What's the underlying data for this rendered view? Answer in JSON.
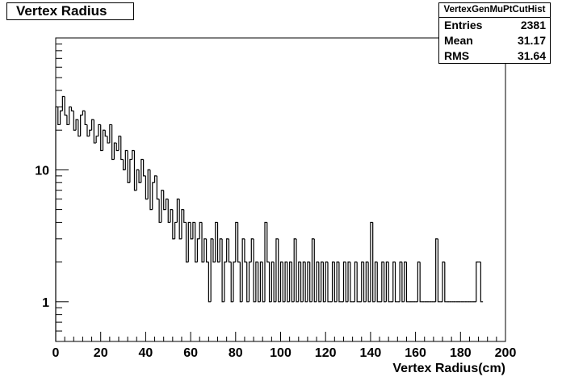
{
  "title": "Vertex Radius",
  "stats": {
    "name": "VertexGenMuPtCutHist",
    "rows": [
      {
        "label": "Entries",
        "value": "2381"
      },
      {
        "label": "Mean",
        "value": "31.17"
      },
      {
        "label": "RMS",
        "value": "31.64"
      }
    ]
  },
  "chart_data": {
    "type": "histogram",
    "title": "Vertex Radius",
    "xlabel": "Vertex Radius(cm)",
    "ylabel": "",
    "xlim": [
      0,
      200
    ],
    "ylim": [
      0.5,
      100
    ],
    "y_scale": "log",
    "grid": false,
    "x_tick_labels": [
      "0",
      "20",
      "40",
      "60",
      "80",
      "100",
      "120",
      "140",
      "160",
      "180",
      "200"
    ],
    "y_tick_labels": [
      {
        "value": 1,
        "label": "1"
      },
      {
        "value": 10,
        "label": "10"
      }
    ],
    "bin_width": 1,
    "bins": [
      {
        "x": 0,
        "count": 30
      },
      {
        "x": 1,
        "count": 22
      },
      {
        "x": 2,
        "count": 28
      },
      {
        "x": 3,
        "count": 36
      },
      {
        "x": 4,
        "count": 26
      },
      {
        "x": 5,
        "count": 22
      },
      {
        "x": 6,
        "count": 30
      },
      {
        "x": 7,
        "count": 28
      },
      {
        "x": 8,
        "count": 20
      },
      {
        "x": 9,
        "count": 24
      },
      {
        "x": 10,
        "count": 18
      },
      {
        "x": 11,
        "count": 26
      },
      {
        "x": 12,
        "count": 28
      },
      {
        "x": 13,
        "count": 22
      },
      {
        "x": 14,
        "count": 18
      },
      {
        "x": 15,
        "count": 20
      },
      {
        "x": 16,
        "count": 24
      },
      {
        "x": 17,
        "count": 16
      },
      {
        "x": 18,
        "count": 18
      },
      {
        "x": 19,
        "count": 22
      },
      {
        "x": 20,
        "count": 14
      },
      {
        "x": 21,
        "count": 20
      },
      {
        "x": 22,
        "count": 18
      },
      {
        "x": 23,
        "count": 16
      },
      {
        "x": 24,
        "count": 22
      },
      {
        "x": 25,
        "count": 12
      },
      {
        "x": 26,
        "count": 16
      },
      {
        "x": 27,
        "count": 14
      },
      {
        "x": 28,
        "count": 18
      },
      {
        "x": 29,
        "count": 12
      },
      {
        "x": 30,
        "count": 10
      },
      {
        "x": 31,
        "count": 14
      },
      {
        "x": 32,
        "count": 8
      },
      {
        "x": 33,
        "count": 12
      },
      {
        "x": 34,
        "count": 14
      },
      {
        "x": 35,
        "count": 7
      },
      {
        "x": 36,
        "count": 10
      },
      {
        "x": 37,
        "count": 8
      },
      {
        "x": 38,
        "count": 12
      },
      {
        "x": 39,
        "count": 9
      },
      {
        "x": 40,
        "count": 6
      },
      {
        "x": 41,
        "count": 10
      },
      {
        "x": 42,
        "count": 5
      },
      {
        "x": 43,
        "count": 8
      },
      {
        "x": 44,
        "count": 9
      },
      {
        "x": 45,
        "count": 6
      },
      {
        "x": 46,
        "count": 4
      },
      {
        "x": 47,
        "count": 7
      },
      {
        "x": 48,
        "count": 5
      },
      {
        "x": 49,
        "count": 6
      },
      {
        "x": 50,
        "count": 4
      },
      {
        "x": 51,
        "count": 5
      },
      {
        "x": 52,
        "count": 3
      },
      {
        "x": 53,
        "count": 4
      },
      {
        "x": 54,
        "count": 6
      },
      {
        "x": 55,
        "count": 3
      },
      {
        "x": 56,
        "count": 5
      },
      {
        "x": 57,
        "count": 4
      },
      {
        "x": 58,
        "count": 2
      },
      {
        "x": 59,
        "count": 4
      },
      {
        "x": 60,
        "count": 3
      },
      {
        "x": 61,
        "count": 4
      },
      {
        "x": 62,
        "count": 2
      },
      {
        "x": 63,
        "count": 3
      },
      {
        "x": 64,
        "count": 4
      },
      {
        "x": 65,
        "count": 2
      },
      {
        "x": 66,
        "count": 3
      },
      {
        "x": 67,
        "count": 2
      },
      {
        "x": 68,
        "count": 1
      },
      {
        "x": 69,
        "count": 3
      },
      {
        "x": 70,
        "count": 2
      },
      {
        "x": 71,
        "count": 4
      },
      {
        "x": 72,
        "count": 2
      },
      {
        "x": 73,
        "count": 3
      },
      {
        "x": 74,
        "count": 1
      },
      {
        "x": 75,
        "count": 2
      },
      {
        "x": 76,
        "count": 3
      },
      {
        "x": 77,
        "count": 2
      },
      {
        "x": 78,
        "count": 1
      },
      {
        "x": 79,
        "count": 2
      },
      {
        "x": 80,
        "count": 4
      },
      {
        "x": 81,
        "count": 2
      },
      {
        "x": 82,
        "count": 1
      },
      {
        "x": 83,
        "count": 3
      },
      {
        "x": 84,
        "count": 2
      },
      {
        "x": 85,
        "count": 1
      },
      {
        "x": 86,
        "count": 2
      },
      {
        "x": 87,
        "count": 3
      },
      {
        "x": 88,
        "count": 1
      },
      {
        "x": 89,
        "count": 2
      },
      {
        "x": 90,
        "count": 1
      },
      {
        "x": 91,
        "count": 2
      },
      {
        "x": 92,
        "count": 1
      },
      {
        "x": 93,
        "count": 4
      },
      {
        "x": 94,
        "count": 2
      },
      {
        "x": 95,
        "count": 1
      },
      {
        "x": 96,
        "count": 2
      },
      {
        "x": 97,
        "count": 1
      },
      {
        "x": 98,
        "count": 3
      },
      {
        "x": 99,
        "count": 1
      },
      {
        "x": 100,
        "count": 2
      },
      {
        "x": 101,
        "count": 1
      },
      {
        "x": 102,
        "count": 2
      },
      {
        "x": 103,
        "count": 1
      },
      {
        "x": 104,
        "count": 2
      },
      {
        "x": 105,
        "count": 1
      },
      {
        "x": 106,
        "count": 3
      },
      {
        "x": 107,
        "count": 1
      },
      {
        "x": 108,
        "count": 2
      },
      {
        "x": 109,
        "count": 1
      },
      {
        "x": 110,
        "count": 2
      },
      {
        "x": 111,
        "count": 1
      },
      {
        "x": 112,
        "count": 2
      },
      {
        "x": 113,
        "count": 1
      },
      {
        "x": 114,
        "count": 3
      },
      {
        "x": 115,
        "count": 1
      },
      {
        "x": 116,
        "count": 2
      },
      {
        "x": 117,
        "count": 1
      },
      {
        "x": 118,
        "count": 2
      },
      {
        "x": 119,
        "count": 1
      },
      {
        "x": 120,
        "count": 2
      },
      {
        "x": 121,
        "count": 1
      },
      {
        "x": 122,
        "count": 1
      },
      {
        "x": 123,
        "count": 2
      },
      {
        "x": 124,
        "count": 1
      },
      {
        "x": 125,
        "count": 2
      },
      {
        "x": 126,
        "count": 1
      },
      {
        "x": 127,
        "count": 1
      },
      {
        "x": 128,
        "count": 2
      },
      {
        "x": 129,
        "count": 1
      },
      {
        "x": 130,
        "count": 2
      },
      {
        "x": 131,
        "count": 1
      },
      {
        "x": 132,
        "count": 1
      },
      {
        "x": 133,
        "count": 2
      },
      {
        "x": 134,
        "count": 1
      },
      {
        "x": 135,
        "count": 1
      },
      {
        "x": 136,
        "count": 2
      },
      {
        "x": 137,
        "count": 1
      },
      {
        "x": 138,
        "count": 2
      },
      {
        "x": 139,
        "count": 1
      },
      {
        "x": 140,
        "count": 4
      },
      {
        "x": 141,
        "count": 1
      },
      {
        "x": 142,
        "count": 2
      },
      {
        "x": 143,
        "count": 1
      },
      {
        "x": 144,
        "count": 1
      },
      {
        "x": 145,
        "count": 2
      },
      {
        "x": 146,
        "count": 1
      },
      {
        "x": 147,
        "count": 2
      },
      {
        "x": 148,
        "count": 1
      },
      {
        "x": 149,
        "count": 1
      },
      {
        "x": 150,
        "count": 2
      },
      {
        "x": 151,
        "count": 1
      },
      {
        "x": 152,
        "count": 1
      },
      {
        "x": 153,
        "count": 2
      },
      {
        "x": 154,
        "count": 1
      },
      {
        "x": 155,
        "count": 2
      },
      {
        "x": 156,
        "count": 1
      },
      {
        "x": 157,
        "count": 1
      },
      {
        "x": 158,
        "count": 1
      },
      {
        "x": 159,
        "count": 1
      },
      {
        "x": 160,
        "count": 1
      },
      {
        "x": 161,
        "count": 2
      },
      {
        "x": 162,
        "count": 1
      },
      {
        "x": 163,
        "count": 1
      },
      {
        "x": 164,
        "count": 1
      },
      {
        "x": 165,
        "count": 1
      },
      {
        "x": 166,
        "count": 1
      },
      {
        "x": 167,
        "count": 1
      },
      {
        "x": 168,
        "count": 1
      },
      {
        "x": 169,
        "count": 3
      },
      {
        "x": 170,
        "count": 1
      },
      {
        "x": 171,
        "count": 1
      },
      {
        "x": 172,
        "count": 2
      },
      {
        "x": 173,
        "count": 1
      },
      {
        "x": 174,
        "count": 1
      },
      {
        "x": 175,
        "count": 1
      },
      {
        "x": 176,
        "count": 1
      },
      {
        "x": 177,
        "count": 1
      },
      {
        "x": 178,
        "count": 1
      },
      {
        "x": 179,
        "count": 1
      },
      {
        "x": 180,
        "count": 1
      },
      {
        "x": 181,
        "count": 1
      },
      {
        "x": 182,
        "count": 1
      },
      {
        "x": 183,
        "count": 1
      },
      {
        "x": 184,
        "count": 1
      },
      {
        "x": 185,
        "count": 1
      },
      {
        "x": 186,
        "count": 1
      },
      {
        "x": 187,
        "count": 2
      },
      {
        "x": 188,
        "count": 2
      },
      {
        "x": 189,
        "count": 1
      }
    ]
  }
}
